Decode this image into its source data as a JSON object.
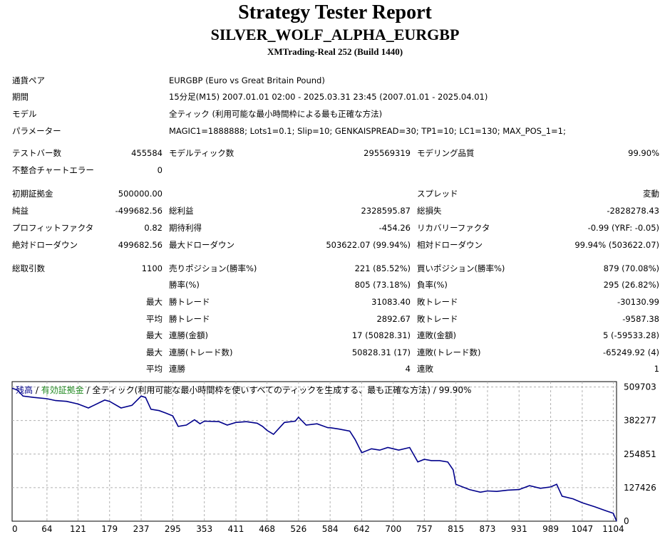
{
  "report": {
    "title": "Strategy Tester Report",
    "expert": "SILVER_WOLF_ALPHA_EURGBP",
    "server": "XMTrading-Real 252 (Build 1440)"
  },
  "info": [
    {
      "label": "通貨ペア",
      "value": "EURGBP (Euro vs Great Britain Pound)"
    },
    {
      "label": "期間",
      "value": "15分足(M15) 2007.01.01 02:00 - 2025.03.31 23:45 (2007.01.01 - 2025.04.01)"
    },
    {
      "label": "モデル",
      "value": "全ティック (利用可能な最小時間枠による最も正確な方法)"
    },
    {
      "label": "パラメーター",
      "value": "MAGIC1=1888888; Lots1=0.1; Slip=10; GENKAISPREAD=30; TP1=10; LC1=130; MAX_POS_1=1;"
    }
  ],
  "tester": {
    "bars_label": "テストバー数",
    "bars": "455584",
    "ticks_label": "モデルティック数",
    "ticks": "295569319",
    "quality_label": "モデリング品質",
    "quality": "99.90%",
    "errors_label": "不整合チャートエラー",
    "errors": "0"
  },
  "stats": {
    "deposit_label": "初期証拠金",
    "deposit": "500000.00",
    "spread_label": "スプレッド",
    "spread": "変動",
    "net_label": "純益",
    "net": "-499682.56",
    "gross_profit_label": "総利益",
    "gross_profit": "2328595.87",
    "gross_loss_label": "総損失",
    "gross_loss": "-2828278.43",
    "pf_label": "プロフィットファクタ",
    "pf": "0.82",
    "expected_label": "期待利得",
    "expected": "-454.26",
    "recovery_label": "リカバリーファクタ",
    "recovery": "-0.99 (YRF: -0.05)",
    "abs_dd_label": "絶対ドローダウン",
    "abs_dd": "499682.56",
    "max_dd_label": "最大ドローダウン",
    "max_dd": "503622.07 (99.94%)",
    "rel_dd_label": "相対ドローダウン",
    "rel_dd": "99.94% (503622.07)",
    "trades_label": "総取引数",
    "trades": "1100",
    "short_label": "売りポジション(勝率%)",
    "short": "221 (85.52%)",
    "long_label": "買いポジション(勝率%)",
    "long": "879 (70.08%)",
    "win_label": "勝率(%)",
    "win": "805 (73.18%)",
    "loss_label": "負率(%)",
    "loss": "295 (26.82%)",
    "largest_prefix": "最大",
    "largest_win_label": "勝トレード",
    "largest_win": "31083.40",
    "largest_loss_label": "敗トレード",
    "largest_loss": "-30130.99",
    "average_prefix": "平均",
    "avg_win_label": "勝トレード",
    "avg_win": "2892.67",
    "avg_loss_label": "敗トレード",
    "avg_loss": "-9587.38",
    "max_prefix_1": "最大",
    "cons_wins_amt_label": "連勝(金額)",
    "cons_wins_amt": "17 (50828.31)",
    "cons_loss_amt_label": "連敗(金額)",
    "cons_loss_amt": "5 (-59533.28)",
    "max_prefix_2": "最大",
    "cons_wins_cnt_label": "連勝(トレード数)",
    "cons_wins_cnt": "50828.31 (17)",
    "cons_loss_cnt_label": "連敗(トレード数)",
    "cons_loss_cnt": "-65249.92 (4)",
    "avg_prefix_2": "平均",
    "avg_cons_win_label": "連勝",
    "avg_cons_win": "4",
    "avg_cons_loss_label": "連敗",
    "avg_cons_loss": "1"
  },
  "legend": {
    "balance": "残高",
    "sep1": " / ",
    "equity": "有効証拠金",
    "sep2": " / ",
    "rest": "全ティック(利用可能な最小時間枠を使いすべてのティックを生成する、最も正確な方法) / 99.90%"
  },
  "colors": {
    "balance": "#00008b",
    "equity": "#228b22",
    "grid": "#b0b0b0"
  },
  "chart_data": {
    "type": "line",
    "title": "",
    "xlabel": "",
    "ylabel": "",
    "x_ticks": [
      0,
      64,
      121,
      179,
      237,
      295,
      353,
      411,
      468,
      526,
      584,
      642,
      700,
      757,
      815,
      873,
      931,
      989,
      1047,
      1104
    ],
    "y_ticks": [
      0,
      127426,
      254851,
      382277,
      509703
    ],
    "xlim": [
      0,
      1110
    ],
    "ylim": [
      0,
      530000
    ],
    "grid": true,
    "series": [
      {
        "name": "残高",
        "x": [
          0,
          10,
          20,
          40,
          64,
          80,
          100,
          121,
          140,
          150,
          170,
          179,
          200,
          220,
          237,
          245,
          255,
          270,
          283,
          295,
          305,
          320,
          335,
          345,
          353,
          380,
          395,
          411,
          430,
          450,
          460,
          468,
          480,
          500,
          520,
          526,
          540,
          560,
          580,
          584,
          600,
          620,
          630,
          642,
          660,
          675,
          690,
          700,
          710,
          730,
          745,
          757,
          770,
          785,
          800,
          810,
          815,
          840,
          860,
          873,
          890,
          910,
          931,
          950,
          970,
          989,
          1000,
          1010,
          1030,
          1047,
          1070,
          1090,
          1104,
          1110
        ],
        "values": [
          505000,
          498000,
          475000,
          470000,
          465000,
          458000,
          455000,
          445000,
          430000,
          440000,
          460000,
          455000,
          430000,
          440000,
          475000,
          470000,
          425000,
          420000,
          410000,
          400000,
          360000,
          365000,
          385000,
          370000,
          380000,
          378000,
          365000,
          375000,
          378000,
          372000,
          360000,
          345000,
          330000,
          375000,
          380000,
          395000,
          365000,
          370000,
          355000,
          355000,
          350000,
          342000,
          310000,
          260000,
          275000,
          270000,
          280000,
          275000,
          270000,
          280000,
          225000,
          235000,
          230000,
          230000,
          225000,
          195000,
          140000,
          120000,
          110000,
          115000,
          113000,
          118000,
          120000,
          135000,
          125000,
          130000,
          140000,
          95000,
          85000,
          70000,
          55000,
          40000,
          30000,
          0
        ]
      }
    ]
  }
}
